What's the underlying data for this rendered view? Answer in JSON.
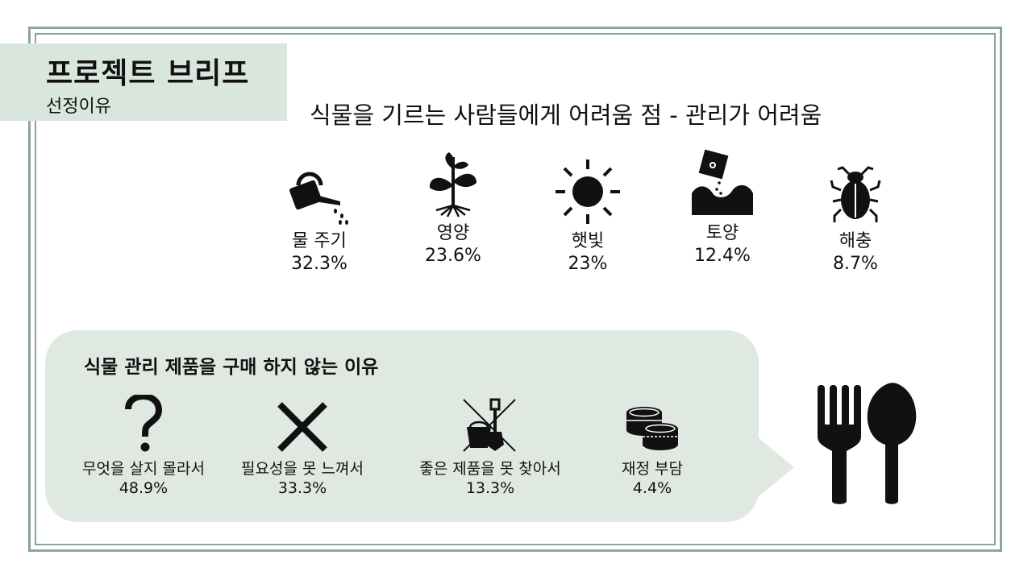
{
  "header": {
    "title": "프로젝트 브리프",
    "subtitle": "선정이유"
  },
  "headline": "식물을 기르는 사람들에게 어려움 점 - 관리가 어려움",
  "factors": [
    {
      "icon": "watering-can-icon",
      "label": "물 주기",
      "percent": "32.3%"
    },
    {
      "icon": "sprout-icon",
      "label": "영양",
      "percent": "23.6%"
    },
    {
      "icon": "sun-icon",
      "label": "햇빛",
      "percent": "23%"
    },
    {
      "icon": "soil-icon",
      "label": "토양",
      "percent": "12.4%"
    },
    {
      "icon": "bug-icon",
      "label": "해충",
      "percent": "8.7%"
    }
  ],
  "reasons_panel": {
    "title": "식물 관리 제품을 구매 하지 않는 이유",
    "items": [
      {
        "icon": "question-mark-icon",
        "label": "무엇을 살지 몰라서",
        "percent": "48.9%"
      },
      {
        "icon": "x-mark-icon",
        "label": "필요성을 못 느껴서",
        "percent": "33.3%"
      },
      {
        "icon": "crossed-garden-tools-icon",
        "label": "좋은 제품을 못 찾아서",
        "percent": "13.3%"
      },
      {
        "icon": "coins-icon",
        "label": "재정 부담",
        "percent": "4.4%"
      }
    ]
  },
  "colors": {
    "accent": "#d9e6dd",
    "bubble": "#dfe9e2",
    "frame": "#8aa698",
    "text": "#111111"
  }
}
